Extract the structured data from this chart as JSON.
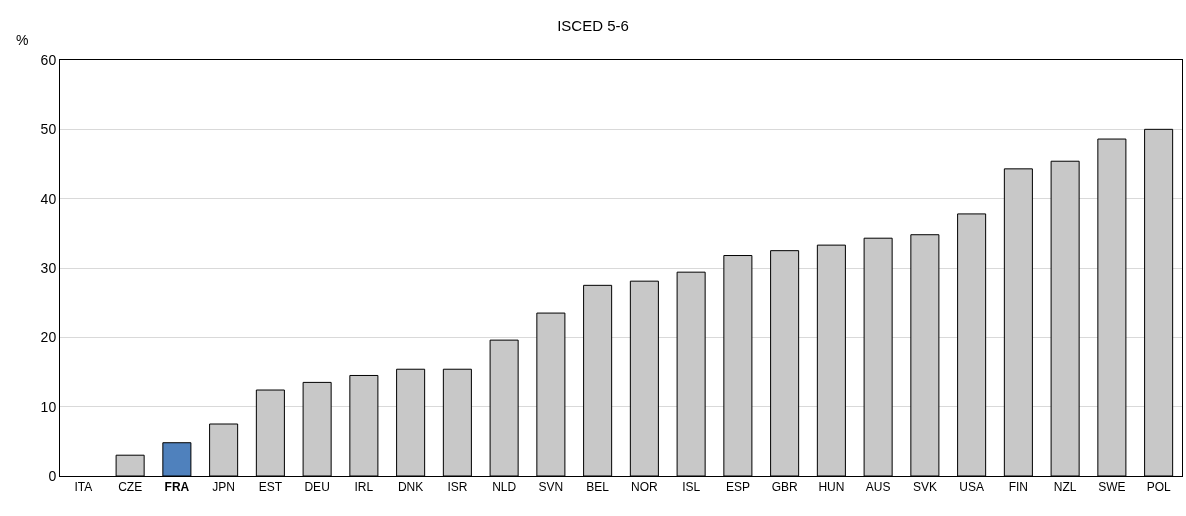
{
  "chart_data": {
    "type": "bar",
    "title": "ISCED 5-6",
    "ylabel": "%",
    "categories": [
      "ITA",
      "CZE",
      "FRA",
      "JPN",
      "EST",
      "DEU",
      "IRL",
      "DNK",
      "ISR",
      "NLD",
      "SVN",
      "BEL",
      "NOR",
      "ISL",
      "ESP",
      "GBR",
      "HUN",
      "AUS",
      "SVK",
      "USA",
      "FIN",
      "NZL",
      "SWE",
      "POL"
    ],
    "values": [
      null,
      3.0,
      4.8,
      7.5,
      12.4,
      13.5,
      14.5,
      15.4,
      15.4,
      19.6,
      23.5,
      27.5,
      28.1,
      29.4,
      31.8,
      32.5,
      33.3,
      34.3,
      34.8,
      37.8,
      44.3,
      45.4,
      48.6,
      50.0
    ],
    "colors": [
      "#c8c8c8",
      "#c8c8c8",
      "#4f81bd",
      "#c8c8c8",
      "#c8c8c8",
      "#c8c8c8",
      "#c8c8c8",
      "#c8c8c8",
      "#c8c8c8",
      "#c8c8c8",
      "#c8c8c8",
      "#c8c8c8",
      "#c8c8c8",
      "#c8c8c8",
      "#c8c8c8",
      "#c8c8c8",
      "#c8c8c8",
      "#c8c8c8",
      "#c8c8c8",
      "#c8c8c8",
      "#c8c8c8",
      "#c8c8c8",
      "#c8c8c8",
      "#c8c8c8"
    ],
    "ylim": [
      0,
      60
    ],
    "yticks": [
      0,
      10,
      20,
      30,
      40,
      50,
      60
    ],
    "grid": "y"
  }
}
